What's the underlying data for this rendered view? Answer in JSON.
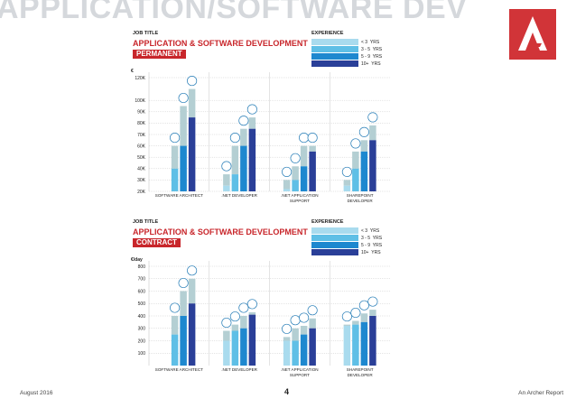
{
  "banner": "APPLICATION/SOFTWARE DEV",
  "footer": {
    "date": "August 2016",
    "page": "4",
    "report": "An Archer Report"
  },
  "legend_colors": [
    "#a9dbee",
    "#5fbfe6",
    "#1e88cf",
    "#2a3f98"
  ],
  "permanent": {
    "job_title_label": "JOB TITLE",
    "title": "APPLICATION & SOFTWARE DEVELOPMENT",
    "tag": "PERMANENT",
    "experience_label": "EXPERIENCE",
    "legend": [
      {
        "range": "< 3",
        "unit": "YRS"
      },
      {
        "range": "3 - 5",
        "unit": "YRS"
      },
      {
        "range": "5 - 9",
        "unit": "YRS"
      },
      {
        "range": "10+",
        "unit": "YRS"
      }
    ],
    "unit": "€",
    "y_ticks": [
      "20K",
      "30K",
      "40K",
      "50K",
      "60K",
      "70K",
      "80K",
      "90K",
      "100K",
      "120K"
    ],
    "categories": [
      "SOFTWARE ARCHITECT",
      ".NET DEVELOPER",
      ".NET APPLICATION SUPPORT",
      "SHAREPOINT DEVELOPER"
    ]
  },
  "contract": {
    "job_title_label": "JOB TITLE",
    "title": "APPLICATION & SOFTWARE DEVELOPMENT",
    "tag": "CONTRACT",
    "experience_label": "EXPERIENCE",
    "legend": [
      {
        "range": "< 3",
        "unit": "YRS"
      },
      {
        "range": "3 - 5",
        "unit": "YRS"
      },
      {
        "range": "5 - 9",
        "unit": "YRS"
      },
      {
        "range": "10+",
        "unit": "YRS"
      }
    ],
    "unit": "€/day",
    "y_ticks": [
      "100",
      "200",
      "300",
      "400",
      "500",
      "600",
      "700",
      "800"
    ],
    "categories": [
      "SOFTWARE ARCHITECT",
      ".NET DEVELOPER",
      ".NET APPLICATION SUPPORT",
      "SHAREPOINT DEVELOPER"
    ]
  },
  "chart_data": [
    {
      "type": "bar",
      "title": "APPLICATION & SOFTWARE DEVELOPMENT PERMANENT",
      "ylabel": "€",
      "ylim": [
        20000,
        120000
      ],
      "categories": [
        "SOFTWARE ARCHITECT",
        ".NET DEVELOPER",
        ".NET APPLICATION SUPPORT",
        "SHAREPOINT DEVELOPER"
      ],
      "series": [
        {
          "name": "< 3 YRS",
          "low": [
            null,
            25000,
            22000,
            25000
          ],
          "high": [
            null,
            35000,
            30000,
            30000
          ]
        },
        {
          "name": "3 - 5 YRS",
          "low": [
            40000,
            35000,
            30000,
            40000
          ],
          "high": [
            60000,
            60000,
            42000,
            55000
          ]
        },
        {
          "name": "5 - 9 YRS",
          "low": [
            60000,
            60000,
            42000,
            55000
          ],
          "high": [
            95000,
            75000,
            60000,
            65000
          ]
        },
        {
          "name": "10+ YRS",
          "low": [
            85000,
            75000,
            55000,
            65000
          ],
          "high": [
            110000,
            85000,
            60000,
            78000
          ]
        }
      ]
    },
    {
      "type": "bar",
      "title": "APPLICATION & SOFTWARE DEVELOPMENT CONTRACT",
      "ylabel": "€/day",
      "ylim": [
        0,
        800
      ],
      "categories": [
        "SOFTWARE ARCHITECT",
        ".NET DEVELOPER",
        ".NET APPLICATION SUPPORT",
        "SHAREPOINT DEVELOPER"
      ],
      "series": [
        {
          "name": "< 3 YRS",
          "low": [
            null,
            200,
            200,
            320
          ],
          "high": [
            null,
            280,
            230,
            330
          ]
        },
        {
          "name": "3 - 5 YRS",
          "low": [
            250,
            280,
            200,
            330
          ],
          "high": [
            400,
            330,
            300,
            360
          ]
        },
        {
          "name": "5 - 9 YRS",
          "low": [
            400,
            300,
            250,
            350
          ],
          "high": [
            600,
            400,
            320,
            420
          ]
        },
        {
          "name": "10+ YRS",
          "low": [
            500,
            410,
            300,
            400
          ],
          "high": [
            700,
            430,
            380,
            450
          ]
        }
      ]
    }
  ]
}
